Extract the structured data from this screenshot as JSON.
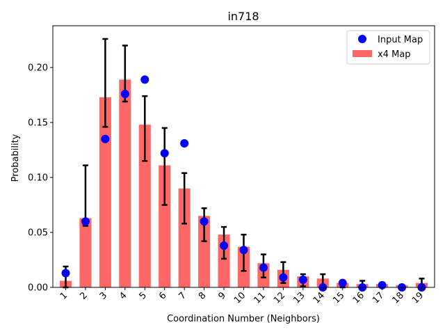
{
  "chart_data": {
    "type": "bar",
    "title": "in718",
    "xlabel": "Coordination Number  (Neighbors)",
    "ylabel": "Probability",
    "categories": [
      "1",
      "2",
      "3",
      "4",
      "5",
      "6",
      "7",
      "8",
      "9",
      "10",
      "11",
      "12",
      "13",
      "14",
      "15",
      "16",
      "17",
      "18",
      "19"
    ],
    "ylim": [
      0,
      0.238
    ],
    "yticks": [
      0.0,
      0.05,
      0.1,
      0.15,
      0.2
    ],
    "ytick_labels": [
      "0.00",
      "0.05",
      "0.10",
      "0.15",
      "0.20"
    ],
    "grid": false,
    "legend_position": "top-right",
    "series": [
      {
        "name": "x4 Map",
        "kind": "bar",
        "color": "#ff6666",
        "values": [
          0.006,
          0.063,
          0.173,
          0.189,
          0.148,
          0.111,
          0.09,
          0.065,
          0.048,
          0.037,
          0.022,
          0.016,
          0.01,
          0.008,
          0.004,
          0.003,
          0.003,
          0.002,
          0.004
        ],
        "error_low": [
          0.0,
          0.056,
          0.146,
          0.169,
          0.115,
          0.075,
          0.058,
          0.042,
          0.026,
          0.015,
          0.009,
          0.004,
          0.001,
          0.0,
          0.0,
          0.0,
          0.0,
          0.0,
          0.0
        ],
        "error_high": [
          0.019,
          0.111,
          0.226,
          0.22,
          0.174,
          0.145,
          0.104,
          0.072,
          0.055,
          0.048,
          0.03,
          0.023,
          0.012,
          0.012,
          0.006,
          0.006,
          0.003,
          0.002,
          0.008
        ]
      },
      {
        "name": "Input Map",
        "kind": "point",
        "color": "#0000ff",
        "values": [
          0.013,
          0.06,
          0.135,
          0.176,
          0.189,
          0.122,
          0.131,
          0.06,
          0.038,
          0.034,
          0.018,
          0.009,
          0.007,
          0.0,
          0.004,
          0.0,
          0.002,
          0.0,
          0.0
        ]
      }
    ]
  }
}
